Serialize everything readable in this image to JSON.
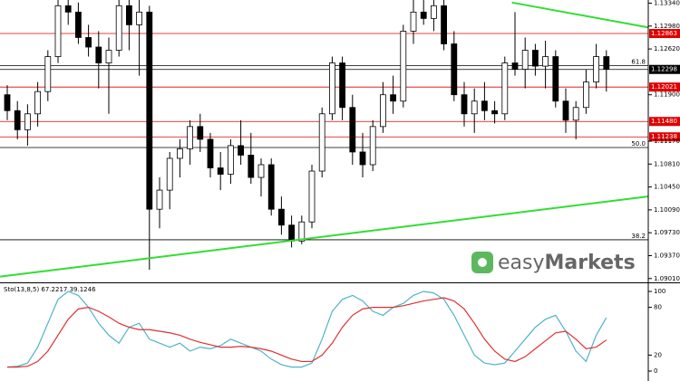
{
  "chart_data": [
    {
      "type": "candlestick",
      "open": [
        1.119,
        1.1165,
        1.1135,
        1.116,
        1.1195,
        1.125,
        1.133,
        1.132,
        1.128,
        1.1265,
        1.124,
        1.126,
        1.133,
        1.13,
        1.132,
        1.101,
        1.104,
        1.109,
        1.1105,
        1.114,
        1.112,
        1.1075,
        1.1065,
        1.111,
        1.1095,
        1.106,
        1.108,
        1.101,
        1.0985,
        1.096,
        1.099,
        1.107,
        1.116,
        1.124,
        1.117,
        1.11,
        1.108,
        1.114,
        1.119,
        1.118,
        1.129,
        1.132,
        1.131,
        1.133,
        1.127,
        1.119,
        1.116,
        1.118,
        1.1165,
        1.116,
        1.124,
        1.123,
        1.126,
        1.1235,
        1.125,
        1.118,
        1.115,
        1.117,
        1.121,
        1.125
      ],
      "high": [
        1.1205,
        1.118,
        1.1175,
        1.121,
        1.126,
        1.1339,
        1.1339,
        1.1335,
        1.13,
        1.129,
        1.128,
        1.1339,
        1.1339,
        1.1339,
        1.133,
        1.106,
        1.11,
        1.112,
        1.115,
        1.116,
        1.113,
        1.11,
        1.112,
        1.115,
        1.113,
        1.109,
        1.109,
        1.103,
        1.1,
        1.1,
        1.108,
        1.117,
        1.125,
        1.125,
        1.119,
        1.113,
        1.115,
        1.121,
        1.122,
        1.13,
        1.1339,
        1.1339,
        1.1339,
        1.1339,
        1.129,
        1.121,
        1.12,
        1.121,
        1.118,
        1.125,
        1.132,
        1.128,
        1.127,
        1.1275,
        1.126,
        1.12,
        1.118,
        1.123,
        1.127,
        1.126
      ],
      "low": [
        1.115,
        1.112,
        1.111,
        1.114,
        1.118,
        1.124,
        1.13,
        1.127,
        1.125,
        1.12,
        1.116,
        1.125,
        1.126,
        1.122,
        1.0915,
        1.098,
        1.101,
        1.106,
        1.108,
        1.11,
        1.106,
        1.104,
        1.105,
        1.108,
        1.105,
        1.103,
        1.1,
        1.097,
        1.095,
        1.0955,
        1.098,
        1.106,
        1.115,
        1.115,
        1.108,
        1.106,
        1.107,
        1.113,
        1.116,
        1.117,
        1.127,
        1.13,
        1.129,
        1.126,
        1.118,
        1.114,
        1.113,
        1.115,
        1.1145,
        1.115,
        1.122,
        1.12,
        1.122,
        1.12,
        1.117,
        1.113,
        1.112,
        1.116,
        1.12,
        1.1195
      ],
      "close": [
        1.1165,
        1.1135,
        1.116,
        1.1195,
        1.125,
        1.133,
        1.132,
        1.128,
        1.1265,
        1.124,
        1.126,
        1.133,
        1.13,
        1.132,
        1.101,
        1.104,
        1.109,
        1.1105,
        1.114,
        1.112,
        1.1075,
        1.1065,
        1.111,
        1.1095,
        1.106,
        1.108,
        1.101,
        1.0985,
        1.096,
        1.099,
        1.107,
        1.116,
        1.124,
        1.117,
        1.11,
        1.108,
        1.114,
        1.119,
        1.118,
        1.129,
        1.132,
        1.131,
        1.133,
        1.127,
        1.119,
        1.116,
        1.118,
        1.1165,
        1.116,
        1.124,
        1.123,
        1.126,
        1.1235,
        1.125,
        1.118,
        1.115,
        1.117,
        1.121,
        1.125,
        1.123
      ],
      "ylim": [
        1.0895,
        1.1339
      ],
      "yticks": [
        {
          "value": 1.1334,
          "label": "1.13340"
        },
        {
          "value": 1.1298,
          "label": "1.12980"
        },
        {
          "value": 1.1262,
          "label": "1.12620"
        },
        {
          "value": 1.119,
          "label": "1.11900"
        },
        {
          "value": 1.1117,
          "label": "1.11170"
        },
        {
          "value": 1.1081,
          "label": "1.10810"
        },
        {
          "value": 1.1045,
          "label": "1.10450"
        },
        {
          "value": 1.1009,
          "label": "1.10090"
        },
        {
          "value": 1.0973,
          "label": "1.09730"
        },
        {
          "value": 1.0937,
          "label": "1.09370"
        },
        {
          "value": 1.0901,
          "label": "1.09010"
        }
      ],
      "levels": [
        {
          "value": 1.12863,
          "label": "1.12863",
          "color": "#e00000"
        },
        {
          "value": 1.12298,
          "label": "1.12298",
          "color": "#000000"
        },
        {
          "value": 1.12021,
          "label": "1.12021",
          "color": "#e00000"
        },
        {
          "value": 1.1148,
          "label": "1.11480",
          "color": "#e00000"
        },
        {
          "value": 1.11238,
          "label": "1.11238",
          "color": "#e00000"
        }
      ],
      "fib_levels": [
        {
          "value": 1.1236,
          "label": "61.8"
        },
        {
          "value": 1.1107,
          "label": "50.0"
        },
        {
          "value": 1.0962,
          "label": "38.2"
        }
      ],
      "trendlines": [
        {
          "color": "#33dd33",
          "points": [
            [
              -0.7,
              1.0904
            ],
            [
              63.1,
              1.103
            ]
          ]
        },
        {
          "color": "#33dd33",
          "points": [
            [
              49.7,
              1.1335
            ],
            [
              63.1,
              1.1296
            ]
          ]
        }
      ],
      "logo": {
        "light": "easy",
        "bold": "Markets",
        "color": "#5cb85c"
      }
    },
    {
      "type": "stochastic",
      "title": "Sto(13,8,5) 67.2217 39.1246",
      "series": [
        {
          "color": "#4fb3c8",
          "values": [
            5,
            6,
            10,
            30,
            60,
            90,
            100,
            95,
            80,
            60,
            45,
            35,
            55,
            60,
            40,
            35,
            30,
            35,
            25,
            30,
            28,
            32,
            40,
            35,
            30,
            25,
            15,
            8,
            5,
            5,
            10,
            40,
            75,
            90,
            95,
            88,
            75,
            70,
            80,
            85,
            95,
            100,
            98,
            90,
            70,
            45,
            20,
            10,
            8,
            10,
            25,
            40,
            55,
            65,
            70,
            50,
            25,
            12,
            45,
            67
          ]
        },
        {
          "color": "#e03030",
          "values": [
            5,
            5,
            6,
            12,
            25,
            45,
            65,
            78,
            80,
            75,
            68,
            60,
            55,
            52,
            52,
            50,
            48,
            45,
            40,
            36,
            33,
            30,
            30,
            31,
            30,
            28,
            25,
            20,
            15,
            12,
            12,
            20,
            35,
            55,
            70,
            78,
            80,
            80,
            80,
            82,
            85,
            88,
            90,
            92,
            88,
            78,
            60,
            40,
            25,
            15,
            12,
            18,
            28,
            38,
            48,
            50,
            40,
            28,
            30,
            39
          ]
        }
      ],
      "ylim": [
        0,
        100
      ],
      "yticks": [
        0,
        20,
        80,
        100
      ]
    }
  ]
}
